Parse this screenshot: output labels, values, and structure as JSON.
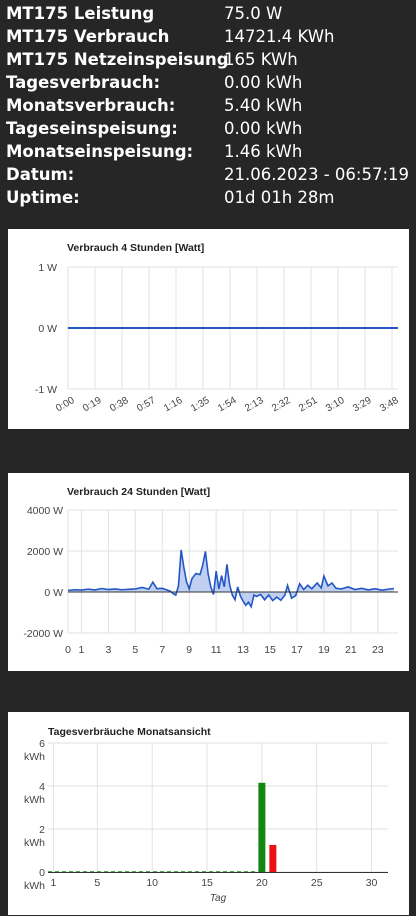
{
  "stats": [
    {
      "label": "MT175 Leistung",
      "value": "75.0 W"
    },
    {
      "label": "MT175 Verbrauch",
      "value": "14721.4 KWh"
    },
    {
      "label": "MT175 Netzeinspeisung",
      "value": "165 KWh"
    },
    {
      "label": "Tagesverbrauch:",
      "value": "0.00 kWh"
    },
    {
      "label": "Monatsverbrauch:",
      "value": "5.40 kWh"
    },
    {
      "label": "Tageseinspeisung:",
      "value": "0.00 kWh"
    },
    {
      "label": "Monatseinspeisung:",
      "value": "1.46 kWh"
    },
    {
      "label": "Datum:",
      "value": "21.06.2023 - 06:57:19"
    },
    {
      "label": "Uptime:",
      "value": "01d 01h 28m"
    }
  ],
  "chart_data": [
    {
      "type": "line",
      "title": "Verbrauch 4 Stunden [Watt]",
      "x": [
        "0:00",
        "0:19",
        "0:38",
        "0:57",
        "1:16",
        "1:35",
        "1:54",
        "2:13",
        "2:32",
        "2:51",
        "3:10",
        "3:29",
        "3:48"
      ],
      "y_ticks": [
        "1 W",
        "0 W",
        "-1 W"
      ],
      "ylim": [
        -1,
        1
      ],
      "series": [
        {
          "values": [
            0,
            0,
            0,
            0,
            0,
            0,
            0,
            0,
            0,
            0,
            0,
            0,
            0
          ]
        }
      ],
      "color": "#2457c5"
    },
    {
      "type": "area",
      "title": "Verbrauch 24 Stunden [Watt]",
      "x_ticks": [
        "0",
        "1",
        "3",
        "5",
        "7",
        "9",
        "11",
        "13",
        "15",
        "17",
        "19",
        "21",
        "23"
      ],
      "y_ticks": [
        "4000 W",
        "2000 W",
        "0 W",
        "-2000 W"
      ],
      "ylim": [
        -2000,
        4000
      ],
      "xlim": [
        0,
        24.5
      ],
      "series": [
        {
          "points": [
            [
              0,
              80
            ],
            [
              0.5,
              110
            ],
            [
              1,
              95
            ],
            [
              1.5,
              140
            ],
            [
              2,
              100
            ],
            [
              2.5,
              170
            ],
            [
              3,
              120
            ],
            [
              3.5,
              150
            ],
            [
              4,
              110
            ],
            [
              4.5,
              130
            ],
            [
              5,
              150
            ],
            [
              5.5,
              220
            ],
            [
              6,
              140
            ],
            [
              6.3,
              480
            ],
            [
              6.6,
              160
            ],
            [
              7,
              180
            ],
            [
              7.3,
              110
            ],
            [
              7.6,
              40
            ],
            [
              7.8,
              -80
            ],
            [
              8.0,
              -150
            ],
            [
              8.2,
              300
            ],
            [
              8.4,
              2050
            ],
            [
              8.6,
              1200
            ],
            [
              8.8,
              500
            ],
            [
              9.0,
              150
            ],
            [
              9.2,
              650
            ],
            [
              9.5,
              900
            ],
            [
              9.8,
              850
            ],
            [
              10.0,
              1300
            ],
            [
              10.2,
              1980
            ],
            [
              10.4,
              900
            ],
            [
              10.6,
              250
            ],
            [
              10.8,
              -120
            ],
            [
              11.0,
              1020
            ],
            [
              11.2,
              150
            ],
            [
              11.4,
              800
            ],
            [
              11.6,
              250
            ],
            [
              11.8,
              1350
            ],
            [
              12.0,
              350
            ],
            [
              12.2,
              -150
            ],
            [
              12.4,
              -380
            ],
            [
              12.6,
              250
            ],
            [
              12.8,
              -200
            ],
            [
              13.0,
              -450
            ],
            [
              13.2,
              -650
            ],
            [
              13.4,
              -500
            ],
            [
              13.6,
              -720
            ],
            [
              13.8,
              -150
            ],
            [
              14.0,
              -220
            ],
            [
              14.3,
              -120
            ],
            [
              14.6,
              -380
            ],
            [
              14.9,
              -150
            ],
            [
              15.2,
              -420
            ],
            [
              15.5,
              -250
            ],
            [
              15.8,
              -400
            ],
            [
              16.1,
              -150
            ],
            [
              16.3,
              320
            ],
            [
              16.6,
              -300
            ],
            [
              16.9,
              -180
            ],
            [
              17.2,
              400
            ],
            [
              17.5,
              120
            ],
            [
              17.8,
              330
            ],
            [
              18.1,
              160
            ],
            [
              18.5,
              440
            ],
            [
              18.8,
              200
            ],
            [
              19.0,
              780
            ],
            [
              19.3,
              300
            ],
            [
              19.6,
              440
            ],
            [
              19.9,
              180
            ],
            [
              20.3,
              150
            ],
            [
              20.8,
              250
            ],
            [
              21.3,
              120
            ],
            [
              21.8,
              180
            ],
            [
              22.3,
              100
            ],
            [
              22.8,
              160
            ],
            [
              23.3,
              90
            ],
            [
              23.8,
              140
            ],
            [
              24.2,
              170
            ]
          ]
        }
      ],
      "color": "#2457c5"
    },
    {
      "type": "bar",
      "title": "Tagesverbräuche Monatsansicht",
      "xlabel": "Tag",
      "x_ticks": [
        "1",
        "5",
        "10",
        "15",
        "20",
        "25",
        "30"
      ],
      "y_ticks": [
        {
          "num": "6",
          "unit": "kWh"
        },
        {
          "num": "4",
          "unit": "kWh"
        },
        {
          "num": "2",
          "unit": "kWh"
        },
        {
          "num": "0",
          "unit": "kWh"
        }
      ],
      "ylim": [
        0,
        6
      ],
      "xlim": [
        0.5,
        31.5
      ],
      "series": [
        {
          "color": "#118811",
          "values": [
            [
              20,
              4.15
            ]
          ]
        },
        {
          "color": "#ee1111",
          "values": [
            [
              21,
              1.26
            ]
          ]
        }
      ]
    }
  ]
}
